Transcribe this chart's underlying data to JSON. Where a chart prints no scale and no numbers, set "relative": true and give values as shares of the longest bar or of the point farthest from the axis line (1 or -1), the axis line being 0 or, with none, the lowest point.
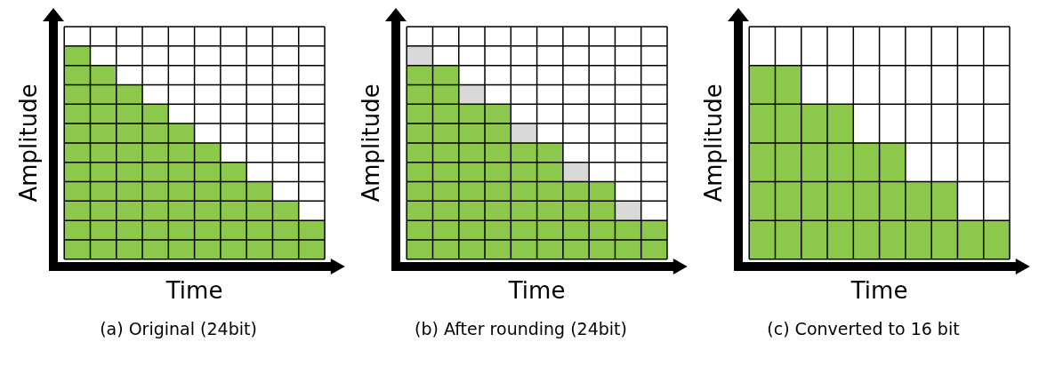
{
  "chart_data": [
    {
      "type": "bar",
      "title": "(a) Original (24bit)",
      "xlabel": "Time",
      "ylabel": "Amplitude",
      "relative": true,
      "grid": true,
      "legend": false,
      "tick_labels": false,
      "categories": [
        null,
        null,
        null,
        null,
        null,
        null,
        null,
        null,
        null,
        null
      ],
      "series": [
        {
          "color": "#8cc84b",
          "values": [
            1,
            0.909,
            0.818,
            0.727,
            0.636,
            0.545,
            0.455,
            0.364,
            0.273,
            0.182
          ]
        }
      ]
    },
    {
      "type": "bar",
      "title": "(b) After rounding (24bit)",
      "xlabel": "Time",
      "ylabel": "Amplitude",
      "relative": true,
      "grid": true,
      "legend": false,
      "tick_labels": false,
      "stacked": true,
      "categories": [
        null,
        null,
        null,
        null,
        null,
        null,
        null,
        null,
        null,
        null
      ],
      "series": [
        {
          "color": "#8cc84b",
          "values": [
            0.909,
            0.909,
            0.727,
            0.727,
            0.545,
            0.545,
            0.364,
            0.364,
            0.182,
            0.182
          ]
        },
        {
          "color": "#d9d9d9",
          "values": [
            0.091,
            null,
            0.091,
            null,
            0.091,
            null,
            0.091,
            null,
            0.091,
            null
          ]
        }
      ]
    },
    {
      "type": "bar",
      "title": "(c) Converted to 16 bit",
      "xlabel": "Time",
      "ylabel": "Amplitude",
      "relative": true,
      "grid": true,
      "legend": false,
      "tick_labels": false,
      "categories": [
        null,
        null,
        null,
        null,
        null,
        null,
        null,
        null,
        null,
        null
      ],
      "series": [
        {
          "color": "#8cc84b",
          "values": [
            1,
            1,
            0.8,
            0.8,
            0.6,
            0.6,
            0.4,
            0.4,
            0.2,
            0.2
          ]
        }
      ]
    }
  ]
}
